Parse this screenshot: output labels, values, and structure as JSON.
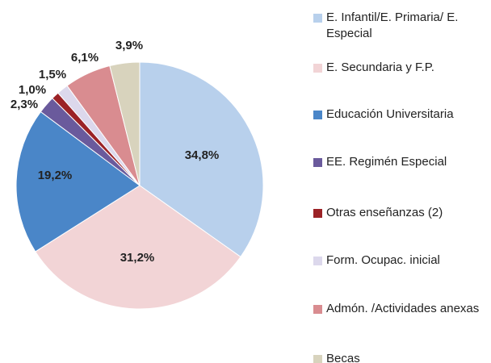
{
  "chart_data": {
    "type": "pie",
    "categories": [
      "E. Infantil/E. Primaria/ E. Especial",
      "E. Secundaria y F.P.",
      "Educación Universitaria",
      "EE. Regimén Especial",
      "Otras enseñanzas (2)",
      "Form. Ocupac. inicial",
      "Admón. /Actividades anexas",
      "Becas"
    ],
    "values": [
      34.8,
      31.2,
      19.2,
      2.3,
      1.0,
      1.5,
      6.1,
      3.9
    ],
    "value_labels": [
      "34,8%",
      "31,2%",
      "19,2%",
      "2,3%",
      "1,0%",
      "1,5%",
      "6,1%",
      "3,9%"
    ],
    "colors": [
      "#b8d0ec",
      "#f2d4d6",
      "#4a86c8",
      "#6a5a9c",
      "#9b2226",
      "#dcd8ec",
      "#d98c90",
      "#d8d3bd"
    ],
    "legend": "right"
  }
}
